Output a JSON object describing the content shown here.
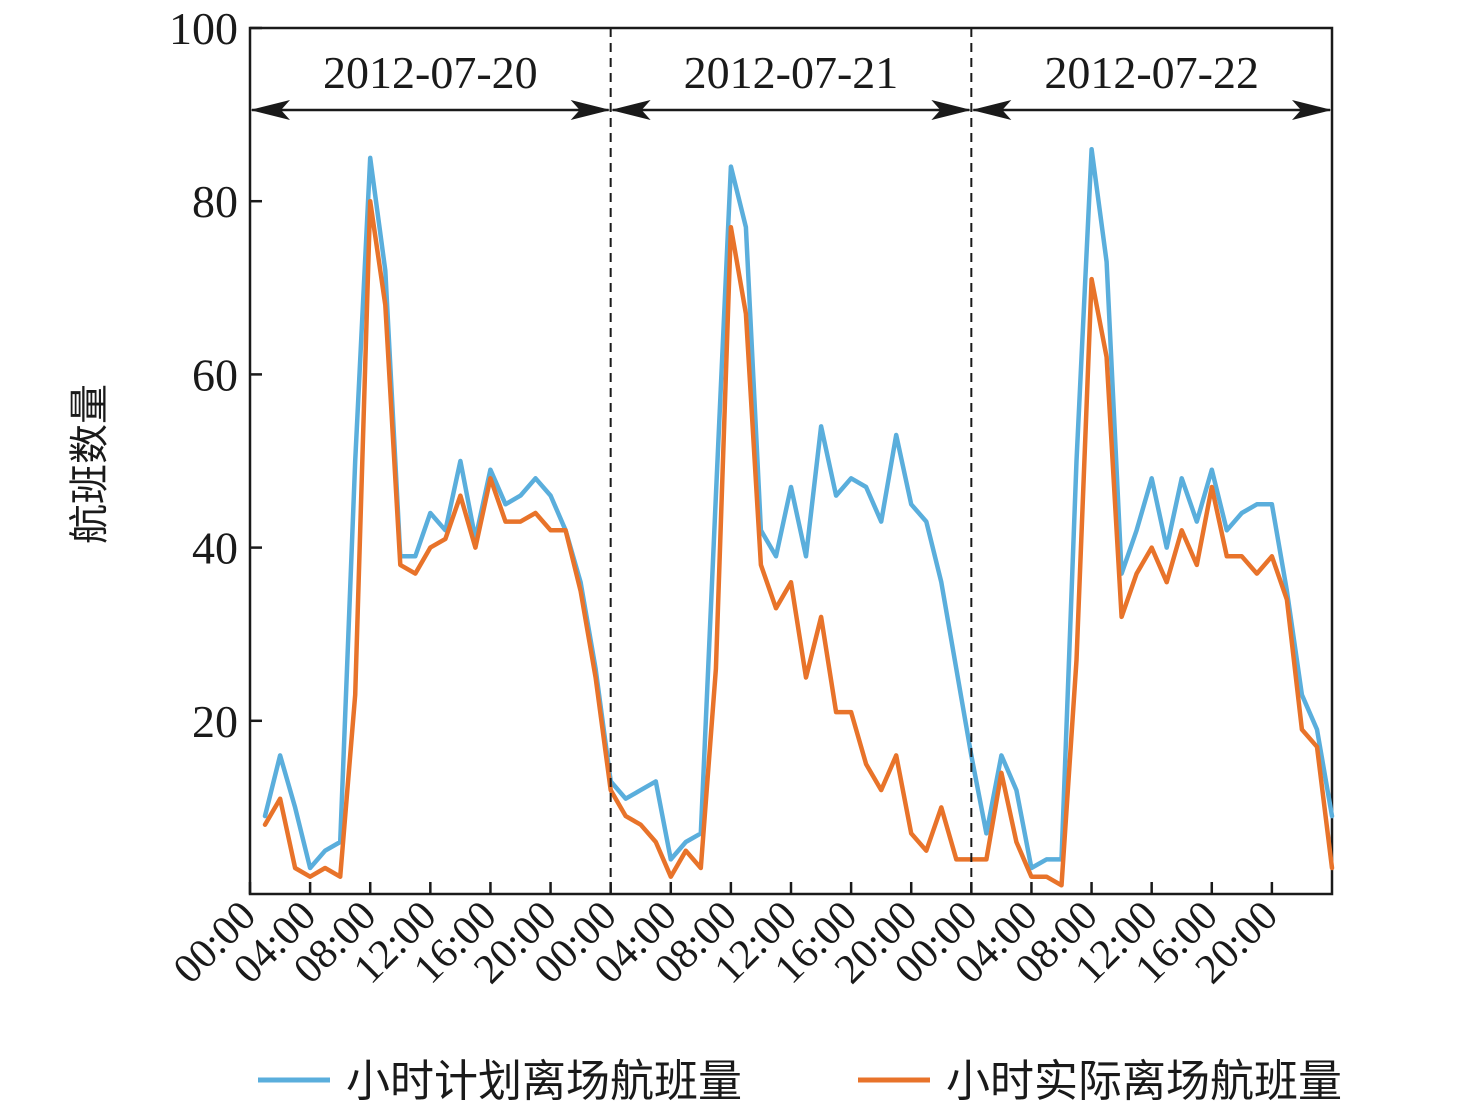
{
  "chart_data": {
    "type": "line",
    "title": "",
    "xlabel": "",
    "ylabel": "航班数量",
    "ylim": [
      0,
      100
    ],
    "yticks": [
      20,
      40,
      60,
      80,
      100
    ],
    "xlim": [
      0,
      72
    ],
    "xticks": [
      {
        "x": 0,
        "label": "00:00"
      },
      {
        "x": 4,
        "label": "04:00"
      },
      {
        "x": 8,
        "label": "08:00"
      },
      {
        "x": 12,
        "label": "12:00"
      },
      {
        "x": 16,
        "label": "16:00"
      },
      {
        "x": 20,
        "label": "20:00"
      },
      {
        "x": 24,
        "label": "00:00"
      },
      {
        "x": 28,
        "label": "04:00"
      },
      {
        "x": 32,
        "label": "08:00"
      },
      {
        "x": 36,
        "label": "12:00"
      },
      {
        "x": 40,
        "label": "16:00"
      },
      {
        "x": 44,
        "label": "20:00"
      },
      {
        "x": 48,
        "label": "00:00"
      },
      {
        "x": 52,
        "label": "04:00"
      },
      {
        "x": 56,
        "label": "08:00"
      },
      {
        "x": 60,
        "label": "12:00"
      },
      {
        "x": 64,
        "label": "16:00"
      },
      {
        "x": 68,
        "label": "20:00"
      }
    ],
    "day_spans": [
      {
        "label": "2012-07-20",
        "start": 0,
        "end": 24
      },
      {
        "label": "2012-07-21",
        "start": 24,
        "end": 48
      },
      {
        "label": "2012-07-22",
        "start": 48,
        "end": 72
      }
    ],
    "day_dividers": [
      24,
      48
    ],
    "grid": false,
    "legend_position": "bottom",
    "series": [
      {
        "name": "小时计划离场航班量",
        "color": "#5aaedc",
        "x": [
          1,
          2,
          3,
          4,
          5,
          6,
          7,
          8,
          9,
          10,
          11,
          12,
          13,
          14,
          15,
          16,
          17,
          18,
          19,
          20,
          21,
          22,
          23,
          24,
          25,
          26,
          27,
          28,
          29,
          30,
          31,
          32,
          33,
          34,
          35,
          36,
          37,
          38,
          39,
          40,
          41,
          42,
          43,
          44,
          45,
          46,
          47,
          48,
          49,
          50,
          51,
          52,
          53,
          54,
          55,
          56,
          57,
          58,
          59,
          60,
          61,
          62,
          63,
          64,
          65,
          66,
          67,
          68,
          69,
          70,
          71,
          72
        ],
        "values": [
          9,
          16,
          10,
          3,
          5,
          6,
          50,
          85,
          72,
          39,
          39,
          44,
          42,
          50,
          41,
          49,
          45,
          46,
          48,
          46,
          42,
          36,
          26,
          13,
          11,
          12,
          13,
          4,
          6,
          7,
          46,
          84,
          77,
          42,
          39,
          47,
          39,
          54,
          46,
          48,
          47,
          43,
          53,
          45,
          43,
          36,
          26,
          16,
          7,
          16,
          12,
          3,
          4,
          4,
          50,
          86,
          73,
          37,
          42,
          48,
          40,
          48,
          43,
          49,
          42,
          44,
          45,
          45,
          35,
          23,
          19,
          9
        ]
      },
      {
        "name": "小时实际离场航班量",
        "color": "#e8732a",
        "x": [
          1,
          2,
          3,
          4,
          5,
          6,
          7,
          8,
          9,
          10,
          11,
          12,
          13,
          14,
          15,
          16,
          17,
          18,
          19,
          20,
          21,
          22,
          23,
          24,
          25,
          26,
          27,
          28,
          29,
          30,
          31,
          32,
          33,
          34,
          35,
          36,
          37,
          38,
          39,
          40,
          41,
          42,
          43,
          44,
          45,
          46,
          47,
          48,
          49,
          50,
          51,
          52,
          53,
          54,
          55,
          56,
          57,
          58,
          59,
          60,
          61,
          62,
          63,
          64,
          65,
          66,
          67,
          68,
          69,
          70,
          71,
          72
        ],
        "values": [
          8,
          11,
          3,
          2,
          3,
          2,
          23,
          80,
          68,
          38,
          37,
          40,
          41,
          46,
          40,
          48,
          43,
          43,
          44,
          42,
          42,
          35,
          25,
          12,
          9,
          8,
          6,
          2,
          5,
          3,
          26,
          77,
          67,
          38,
          33,
          36,
          25,
          32,
          21,
          21,
          15,
          12,
          16,
          7,
          5,
          10,
          4,
          4,
          4,
          14,
          6,
          2,
          2,
          1,
          27,
          71,
          62,
          32,
          37,
          40,
          36,
          42,
          38,
          47,
          39,
          39,
          37,
          39,
          34,
          19,
          17,
          3
        ]
      }
    ]
  }
}
